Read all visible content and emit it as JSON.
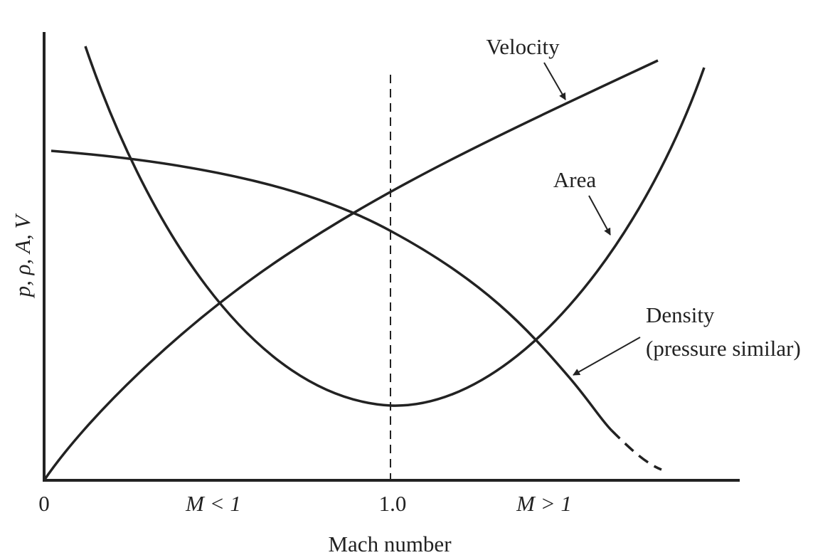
{
  "axes": {
    "y_label": "p, ρ, A, V",
    "x_label": "Mach number",
    "x_ticks": [
      "0",
      "M < 1",
      "1.0",
      "M > 1"
    ]
  },
  "curves": {
    "velocity": "Velocity",
    "area": "Area",
    "density": [
      "Density",
      "(pressure similar)"
    ]
  }
}
